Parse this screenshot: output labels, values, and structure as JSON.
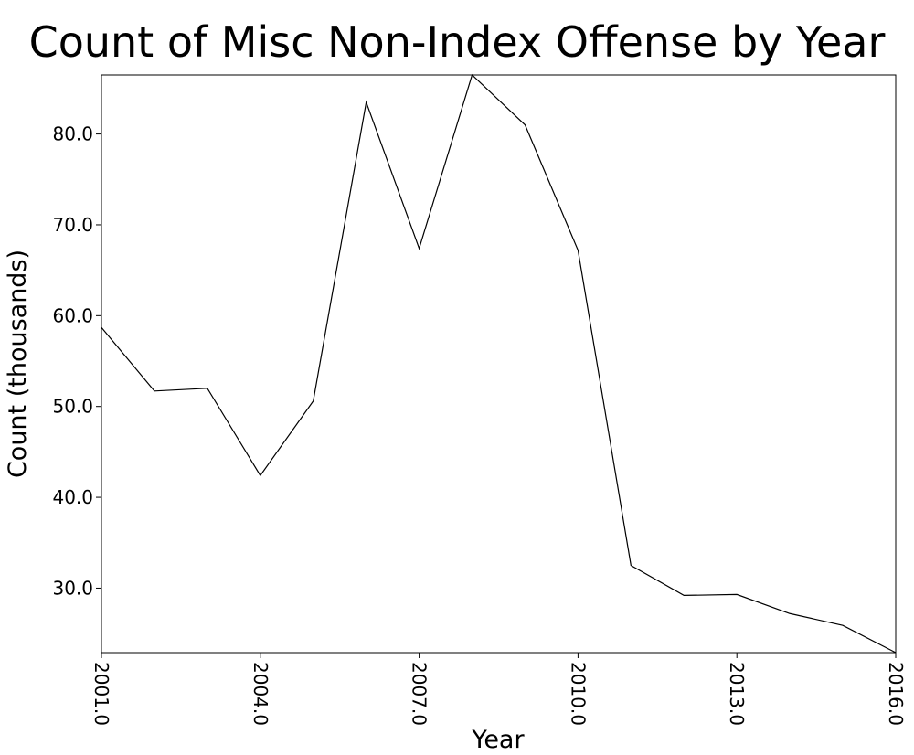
{
  "chart_data": {
    "type": "line",
    "title": "Count of Misc Non-Index Offense by Year",
    "xlabel": "Year",
    "ylabel": "Count (thousands)",
    "x": [
      2001,
      2002,
      2003,
      2004,
      2005,
      2006,
      2007,
      2008,
      2009,
      2010,
      2011,
      2012,
      2013,
      2014,
      2015,
      2016
    ],
    "series": [
      {
        "values": [
          58.7,
          51.7,
          52.0,
          42.4,
          50.6,
          83.5,
          67.4,
          86.5,
          81.0,
          67.2,
          32.5,
          29.2,
          29.3,
          27.2,
          25.9,
          22.9
        ],
        "color": "#000000"
      }
    ],
    "xlim": [
      2001,
      2016
    ],
    "ylim": [
      22.9,
      86.5
    ],
    "xticks": [
      2001,
      2004,
      2007,
      2010,
      2013,
      2016
    ],
    "xtick_labels": [
      "2001.0",
      "2004.0",
      "2007.0",
      "2010.0",
      "2013.0",
      "2016.0"
    ],
    "yticks": [
      30,
      40,
      50,
      60,
      70,
      80
    ],
    "ytick_labels": [
      "30.0",
      "40.0",
      "50.0",
      "60.0",
      "70.0",
      "80.0"
    ],
    "grid": false,
    "legend": "none"
  }
}
